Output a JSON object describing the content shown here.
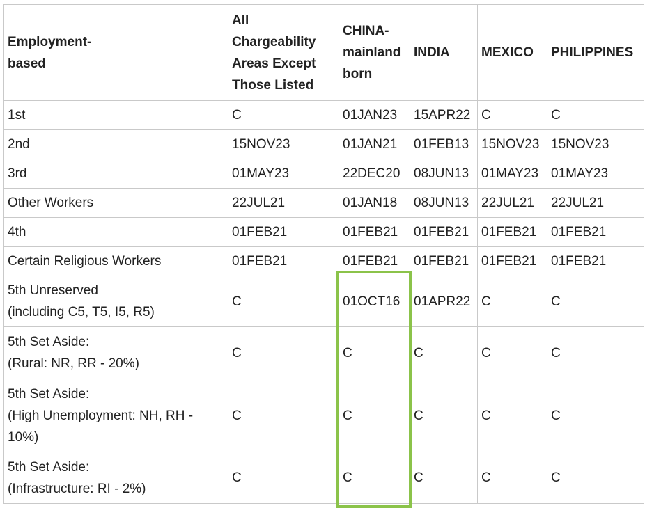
{
  "table": {
    "headers": [
      "Employment-\nbased",
      "All\nChargeability\nAreas Except\nThose Listed",
      "CHINA-\nmainland\nborn",
      "INDIA",
      "MEXICO",
      "PHILIPPINES"
    ],
    "rows": [
      [
        "1st",
        "C",
        "01JAN23",
        "15APR22",
        "C",
        "C"
      ],
      [
        "2nd",
        "15NOV23",
        "01JAN21",
        "01FEB13",
        "15NOV23",
        "15NOV23"
      ],
      [
        "3rd",
        "01MAY23",
        "22DEC20",
        "08JUN13",
        "01MAY23",
        "01MAY23"
      ],
      [
        "Other Workers",
        "22JUL21",
        "01JAN18",
        "08JUN13",
        "22JUL21",
        "22JUL21"
      ],
      [
        "4th",
        "01FEB21",
        "01FEB21",
        "01FEB21",
        "01FEB21",
        "01FEB21"
      ],
      [
        "Certain Religious Workers",
        "01FEB21",
        "01FEB21",
        "01FEB21",
        "01FEB21",
        "01FEB21"
      ],
      [
        "5th Unreserved\n(including C5, T5, I5, R5)",
        "C",
        "01OCT16",
        "01APR22",
        "C",
        "C"
      ],
      [
        "5th Set Aside:\n(Rural: NR, RR - 20%)",
        "C",
        "C",
        "C",
        "C",
        "C"
      ],
      [
        "5th Set Aside:\n(High Unemployment: NH, RH -\n10%)",
        "C",
        "C",
        "C",
        "C",
        "C"
      ],
      [
        "5th Set Aside:\n(Infrastructure: RI - 2%)",
        "C",
        "C",
        "C",
        "C",
        "C"
      ]
    ]
  },
  "highlight": {
    "column": "CHINA-mainland born",
    "color": "#8bc34a"
  }
}
